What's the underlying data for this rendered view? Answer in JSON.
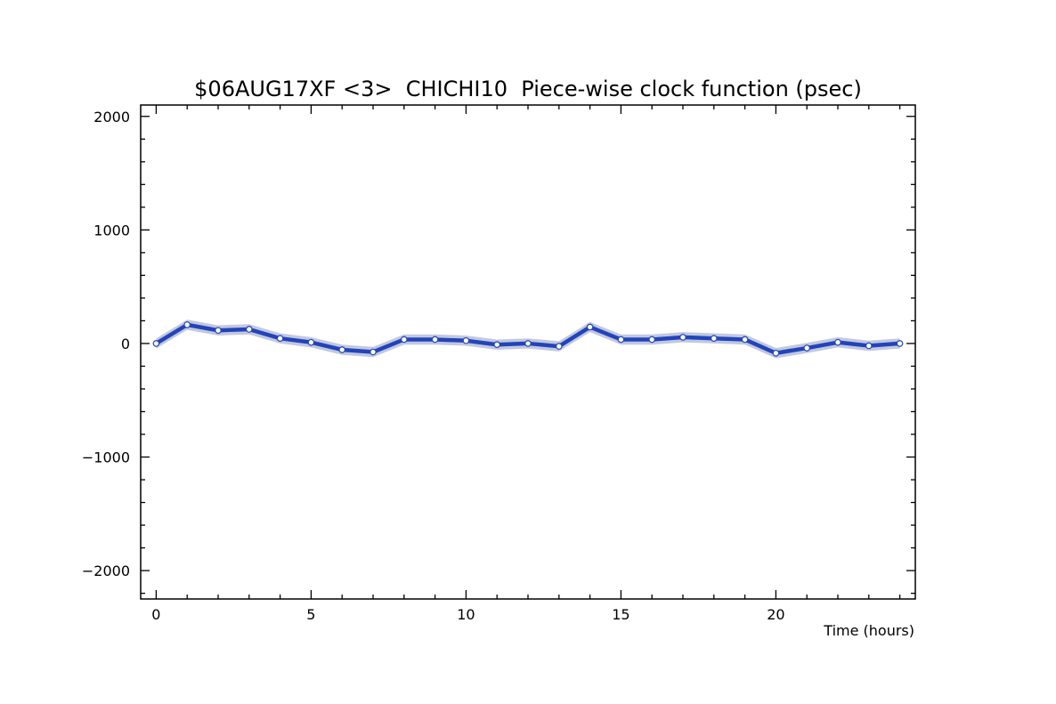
{
  "chart_data": {
    "type": "line",
    "title": "$06AUG17XF <3>  CHICHI10  Piece-wise clock function (psec)",
    "xlabel": "Time (hours)",
    "ylabel": "",
    "xlim": [
      -0.5,
      24.5
    ],
    "ylim": [
      -2250,
      2100
    ],
    "x_ticks": [
      0,
      5,
      10,
      15,
      20
    ],
    "y_ticks": [
      -2000,
      -1000,
      0,
      1000,
      2000
    ],
    "x_tick_labels": [
      "0",
      "5",
      "10",
      "15",
      "20"
    ],
    "y_tick_labels": [
      "−2000",
      "−1000",
      "0",
      "1000",
      "2000"
    ],
    "grid": false,
    "legend": "none",
    "colors": {
      "line": "#2244bb",
      "band": "#c2c8de",
      "marker_fill": "#ffffff",
      "axis": "#000000"
    },
    "series": [
      {
        "x": [
          0,
          1,
          2,
          3,
          4,
          5,
          6,
          7,
          8,
          9,
          10,
          11,
          12,
          13,
          14,
          15,
          16,
          17,
          18,
          19,
          20,
          21,
          22,
          23,
          24
        ],
        "y": [
          0,
          165,
          115,
          125,
          45,
          10,
          -55,
          -75,
          35,
          35,
          25,
          -10,
          0,
          -25,
          145,
          35,
          35,
          55,
          45,
          35,
          -85,
          -40,
          10,
          -20,
          0
        ],
        "band_halfwidth": 45
      }
    ]
  }
}
